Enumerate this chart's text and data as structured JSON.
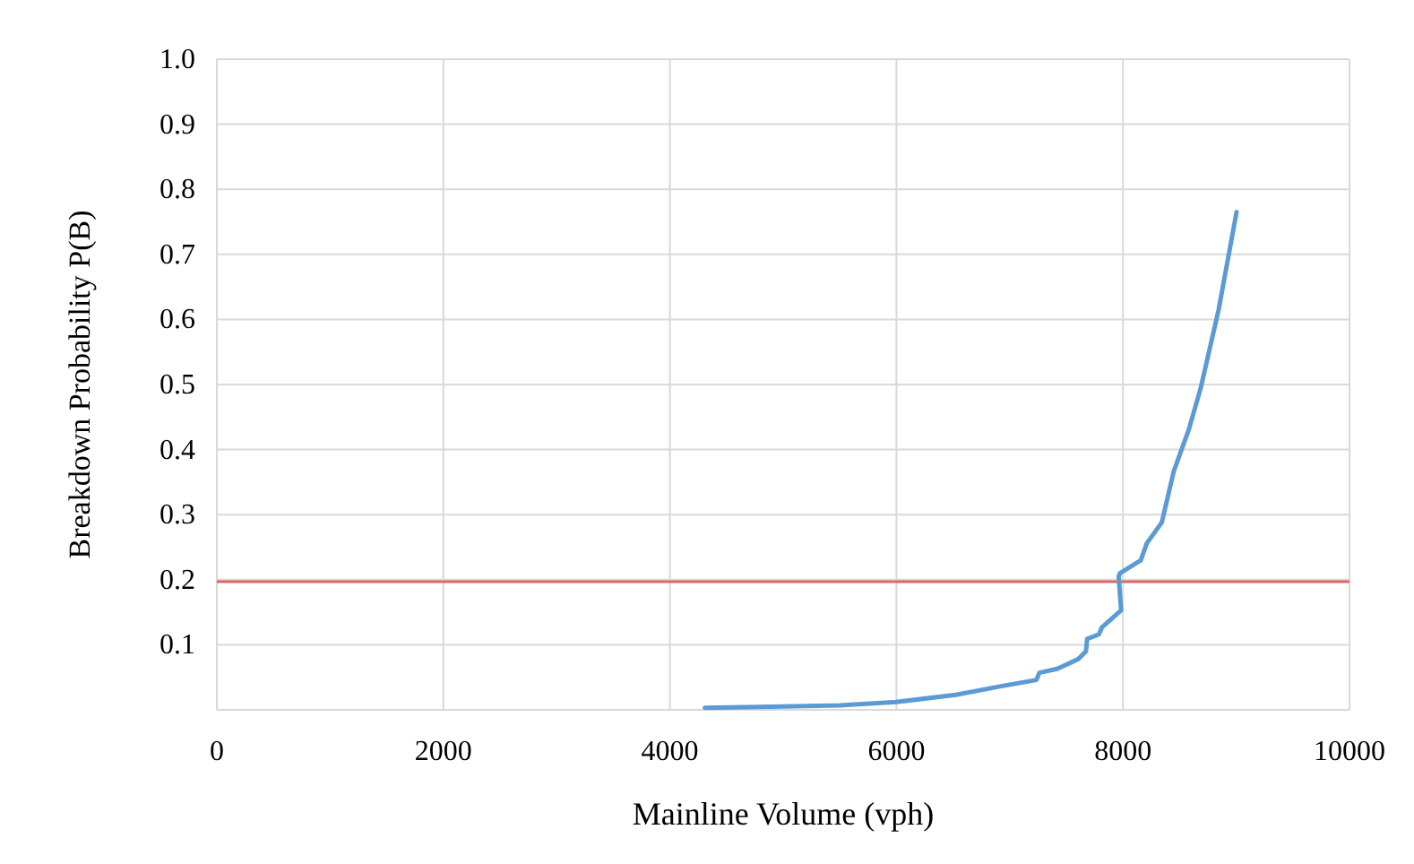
{
  "chart_data": {
    "type": "line",
    "xlabel": "Mainline Volume (vph)",
    "ylabel": "Breakdown Probability P(B)",
    "series": [
      {
        "color": "#5b9bd5",
        "x": [
          4308,
          5000,
          5500,
          5997,
          6524,
          6946,
          7236,
          7262,
          7420,
          7605,
          7673,
          7684,
          7788,
          7815,
          7984,
          7962,
          7973,
          8158,
          8211,
          8343,
          8449,
          8582,
          8687,
          8845,
          9003
        ],
        "values": [
          0.003,
          0.005,
          0.007,
          0.012,
          0.023,
          0.037,
          0.046,
          0.057,
          0.063,
          0.078,
          0.09,
          0.109,
          0.116,
          0.127,
          0.153,
          0.205,
          0.21,
          0.23,
          0.256,
          0.288,
          0.367,
          0.431,
          0.495,
          0.615,
          0.765
        ]
      }
    ],
    "xlim": [
      0,
      10000
    ],
    "xticks": [
      0,
      2000,
      4000,
      6000,
      8000,
      10000
    ],
    "ylim": [
      0,
      1
    ],
    "yticks": [
      {
        "value": 0,
        "label": null
      },
      0.1,
      0.2,
      0.3,
      0.4,
      0.5,
      0.6,
      0.7,
      0.8,
      0.9,
      {
        "value": 1,
        "label": "1.0"
      }
    ],
    "grid": true,
    "line_style": "solid",
    "marker": "none",
    "ref_lines": [
      {
        "axis": "y",
        "value": 0.197,
        "color": "#e06666"
      }
    ]
  }
}
